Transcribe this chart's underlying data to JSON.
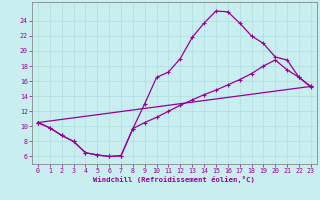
{
  "xlabel": "Windchill (Refroidissement éolien,°C)",
  "xlim": [
    -0.5,
    23.5
  ],
  "ylim": [
    5.0,
    26.5
  ],
  "yticks": [
    6,
    8,
    10,
    12,
    14,
    16,
    18,
    20,
    22,
    24
  ],
  "xticks": [
    0,
    1,
    2,
    3,
    4,
    5,
    6,
    7,
    8,
    9,
    10,
    11,
    12,
    13,
    14,
    15,
    16,
    17,
    18,
    19,
    20,
    21,
    22,
    23
  ],
  "bg_color": "#c8eef0",
  "line_color": "#990099",
  "grid_color": "#b0dde0",
  "line1_x": [
    0,
    1,
    2,
    3,
    4,
    5,
    6,
    7,
    8,
    9,
    10,
    11,
    12,
    13,
    14,
    15,
    16,
    17,
    18,
    19,
    20,
    21,
    22,
    23
  ],
  "line1_y": [
    10.5,
    9.8,
    8.8,
    8.0,
    6.5,
    6.2,
    6.0,
    6.1,
    9.7,
    13.0,
    16.5,
    17.2,
    19.0,
    21.8,
    23.7,
    25.3,
    25.2,
    23.7,
    22.0,
    21.0,
    19.2,
    18.8,
    16.5,
    15.2
  ],
  "line2_x": [
    0,
    1,
    2,
    3,
    4,
    5,
    6,
    7,
    8,
    9,
    10,
    11,
    12,
    13,
    14,
    15,
    16,
    17,
    18,
    19,
    20,
    21,
    22,
    23
  ],
  "line2_y": [
    10.5,
    9.8,
    8.8,
    8.0,
    6.5,
    6.2,
    6.0,
    6.1,
    9.7,
    10.5,
    11.2,
    12.0,
    12.8,
    13.5,
    14.2,
    14.8,
    15.5,
    16.2,
    17.0,
    18.0,
    18.8,
    17.5,
    16.5,
    15.3
  ],
  "line3_x": [
    0,
    23
  ],
  "line3_y": [
    10.5,
    15.3
  ]
}
